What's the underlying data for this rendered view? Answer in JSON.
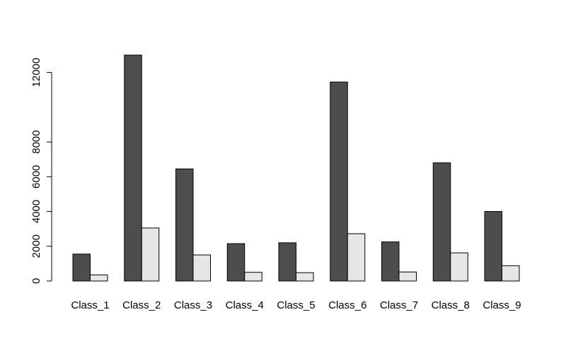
{
  "chart_data": {
    "type": "bar",
    "categories": [
      "Class_1",
      "Class_2",
      "Class_3",
      "Class_4",
      "Class_5",
      "Class_6",
      "Class_7",
      "Class_8",
      "Class_9"
    ],
    "series": [
      {
        "values": [
          1550,
          13000,
          6450,
          2150,
          2200,
          11450,
          2250,
          6800,
          4000
        ],
        "color": "#4d4d4d"
      },
      {
        "values": [
          350,
          3050,
          1500,
          500,
          480,
          2720,
          520,
          1620,
          880
        ],
        "color": "#e6e6e6"
      }
    ],
    "y_ticks": [
      0,
      2000,
      4000,
      6000,
      8000,
      12000
    ],
    "y_tick_labels": [
      "0",
      "2000",
      "4000",
      "6000",
      "8000",
      "12000"
    ],
    "ylim": [
      0,
      13000
    ],
    "grid": false,
    "legend": "none",
    "title": "",
    "xlabel": "",
    "ylabel": ""
  }
}
